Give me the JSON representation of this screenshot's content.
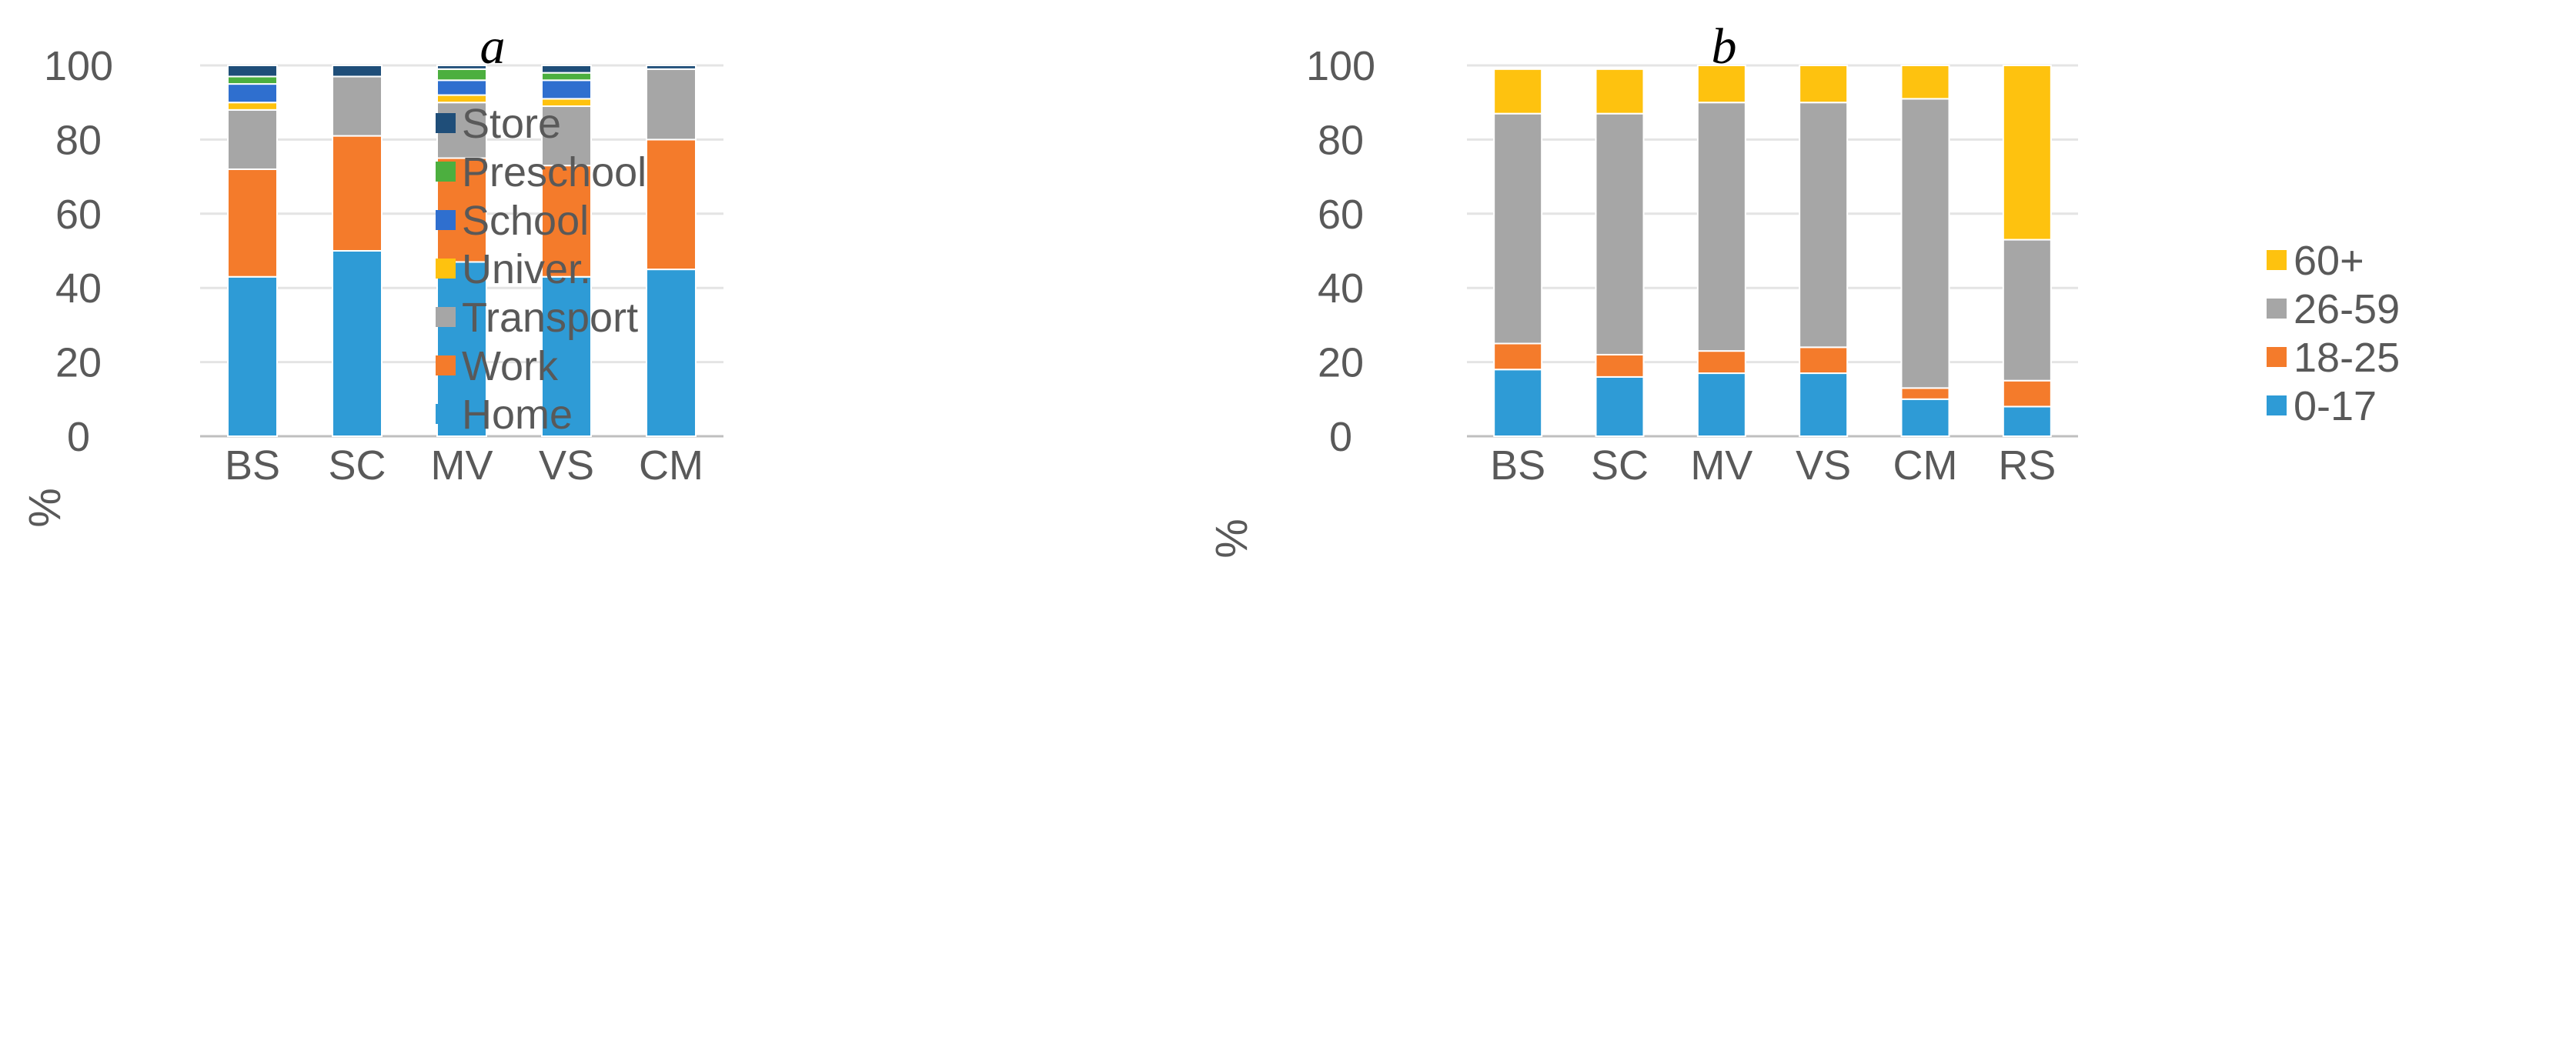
{
  "chart_data": [
    {
      "type": "bar",
      "stacked": true,
      "title": "a",
      "xlabel": "",
      "ylabel": "%",
      "ylim": [
        0,
        100
      ],
      "yticks": [
        0,
        20,
        40,
        60,
        80,
        100
      ],
      "categories": [
        "BS",
        "SC",
        "MV",
        "VS",
        "CM"
      ],
      "series": [
        {
          "name": "Home",
          "color": "#2e9bd6",
          "values": [
            43,
            50,
            47,
            43,
            45
          ]
        },
        {
          "name": "Work",
          "color": "#f47b2b",
          "values": [
            29,
            31,
            28,
            30,
            35
          ]
        },
        {
          "name": "Transport",
          "color": "#a6a6a6",
          "values": [
            16,
            16,
            15,
            16,
            19
          ]
        },
        {
          "name": "Univer.",
          "color": "#fec20f",
          "values": [
            2,
            0,
            2,
            2,
            0
          ]
        },
        {
          "name": "School",
          "color": "#2f6fcf",
          "values": [
            5,
            0,
            4,
            5,
            0
          ]
        },
        {
          "name": "Preschool",
          "color": "#4caf3f",
          "values": [
            2,
            0,
            3,
            2,
            0
          ]
        },
        {
          "name": "Store",
          "color": "#1f4e79",
          "values": [
            3,
            3,
            1,
            2,
            1
          ]
        }
      ],
      "legend": "right"
    },
    {
      "type": "bar",
      "stacked": true,
      "title": "b",
      "xlabel": "",
      "ylabel": "%",
      "ylim": [
        0,
        100
      ],
      "yticks": [
        0,
        20,
        40,
        60,
        80,
        100
      ],
      "categories": [
        "BS",
        "SC",
        "MV",
        "VS",
        "CM",
        "RS"
      ],
      "series": [
        {
          "name": "0-17",
          "color": "#2e9bd6",
          "values": [
            18,
            16,
            17,
            17,
            10,
            8
          ]
        },
        {
          "name": "18-25",
          "color": "#f47b2b",
          "values": [
            7,
            6,
            6,
            7,
            3,
            7
          ]
        },
        {
          "name": "26-59",
          "color": "#a6a6a6",
          "values": [
            62,
            65,
            67,
            66,
            78,
            38
          ]
        },
        {
          "name": "60+",
          "color": "#fec20f",
          "values": [
            12,
            12,
            10,
            10,
            9,
            47
          ]
        }
      ],
      "legend": "right"
    }
  ]
}
